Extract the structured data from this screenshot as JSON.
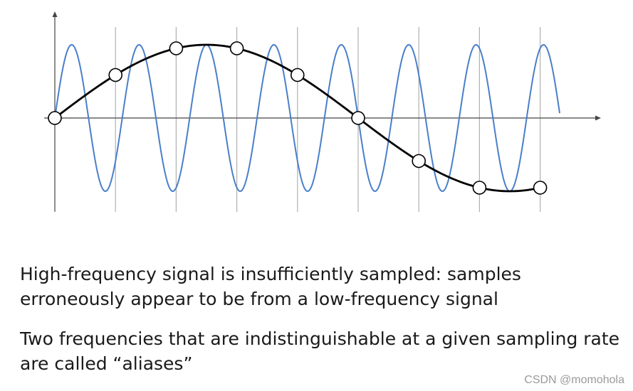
{
  "diagram": {
    "description_text": [
      "High-frequency signal is insufficiently sampled: samples erroneously appear to be from a low-frequency signal",
      "Two frequencies that are indistinguishable at a given sampling rate are called “aliases”"
    ],
    "colors": {
      "high_frequency_signal": "#4a7fc9",
      "low_frequency_alias": "#000000",
      "axes": "#444444",
      "sample_grid": "#b0b0b0",
      "sample_point_fill": "#ffffff",
      "sample_point_stroke": "#000000"
    },
    "signals": {
      "high_frequency": {
        "cycles_per_sample": 0.9
      },
      "low_frequency_alias": {
        "cycles_per_sample": 0.1,
        "phase_sign": -1
      }
    },
    "sampling": {
      "sample_count": 9,
      "sample_indices": [
        0,
        1,
        2,
        3,
        4,
        5,
        6,
        7,
        8
      ]
    }
  },
  "watermark": "CSDN @momohola"
}
